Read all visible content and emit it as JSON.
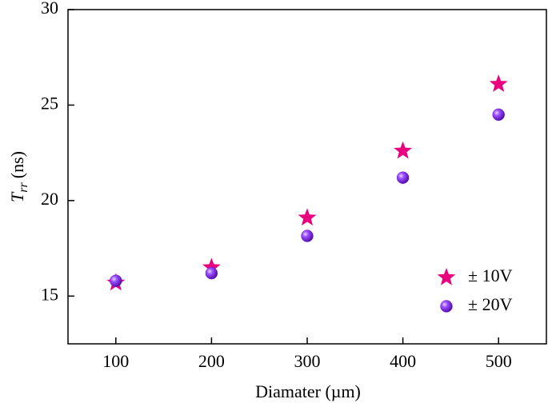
{
  "chart_data": {
    "type": "scatter",
    "x_label": "Diamater (µm)",
    "y_label": {
      "main": "T",
      "sub": "rr",
      "unit": "(ns)"
    },
    "xlim": [
      50,
      550
    ],
    "xticks": [
      100,
      200,
      300,
      400,
      500
    ],
    "ylim": [
      12.5,
      30
    ],
    "yticks": [
      15,
      20,
      25,
      30
    ],
    "legend": "lower right",
    "series": [
      {
        "name": "± 10V",
        "marker": "star",
        "color": "#e8007f",
        "x": [
          100,
          200,
          300,
          400,
          500
        ],
        "values": [
          15.7,
          16.5,
          19.1,
          22.6,
          26.1
        ]
      },
      {
        "name": "± 20V",
        "marker": "sphere",
        "color": "#7a1ee6",
        "x": [
          100,
          200,
          300,
          400,
          500
        ],
        "values": [
          15.8,
          16.2,
          18.15,
          21.2,
          24.5
        ]
      }
    ]
  }
}
